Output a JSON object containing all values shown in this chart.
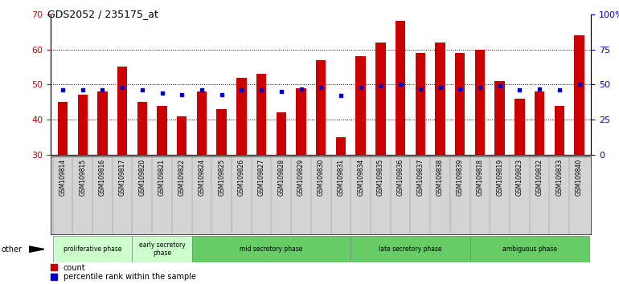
{
  "title": "GDS2052 / 235175_at",
  "samples": [
    "GSM109814",
    "GSM109815",
    "GSM109816",
    "GSM109817",
    "GSM109820",
    "GSM109821",
    "GSM109822",
    "GSM109824",
    "GSM109825",
    "GSM109826",
    "GSM109827",
    "GSM109828",
    "GSM109829",
    "GSM109830",
    "GSM109831",
    "GSM109834",
    "GSM109835",
    "GSM109836",
    "GSM109837",
    "GSM109838",
    "GSM109839",
    "GSM109818",
    "GSM109819",
    "GSM109823",
    "GSM109832",
    "GSM109833",
    "GSM109840"
  ],
  "count_values": [
    45,
    47,
    48,
    55,
    45,
    44,
    41,
    48,
    43,
    52,
    53,
    42,
    49,
    57,
    35,
    58,
    62,
    68,
    59,
    62,
    59,
    60,
    51,
    46,
    48,
    44,
    64
  ],
  "percentile_values": [
    46,
    46,
    46,
    48,
    46,
    44,
    43,
    46,
    43,
    46,
    46,
    45,
    47,
    48,
    42,
    48,
    49,
    50,
    47,
    48,
    47,
    48,
    49,
    46,
    47,
    46,
    50
  ],
  "phases": [
    {
      "label": "proliferative phase",
      "start": 0,
      "end": 4,
      "color": "#ccffcc"
    },
    {
      "label": "early secretory\nphase",
      "start": 4,
      "end": 7,
      "color": "#ccffcc"
    },
    {
      "label": "mid secretory phase",
      "start": 7,
      "end": 15,
      "color": "#66cc66"
    },
    {
      "label": "late secretory phase",
      "start": 15,
      "end": 21,
      "color": "#66cc66"
    },
    {
      "label": "ambiguous phase",
      "start": 21,
      "end": 27,
      "color": "#66cc66"
    }
  ],
  "ylim_left": [
    30,
    70
  ],
  "ylim_right": [
    0,
    100
  ],
  "yticks_left": [
    30,
    40,
    50,
    60,
    70
  ],
  "yticks_right": [
    0,
    25,
    50,
    75,
    100
  ],
  "bar_color": "#cc0000",
  "percentile_color": "#0000cc",
  "bar_width": 0.5,
  "tick_label_bg": "#d4d4d4",
  "fig_width": 7.7,
  "fig_height": 3.54
}
